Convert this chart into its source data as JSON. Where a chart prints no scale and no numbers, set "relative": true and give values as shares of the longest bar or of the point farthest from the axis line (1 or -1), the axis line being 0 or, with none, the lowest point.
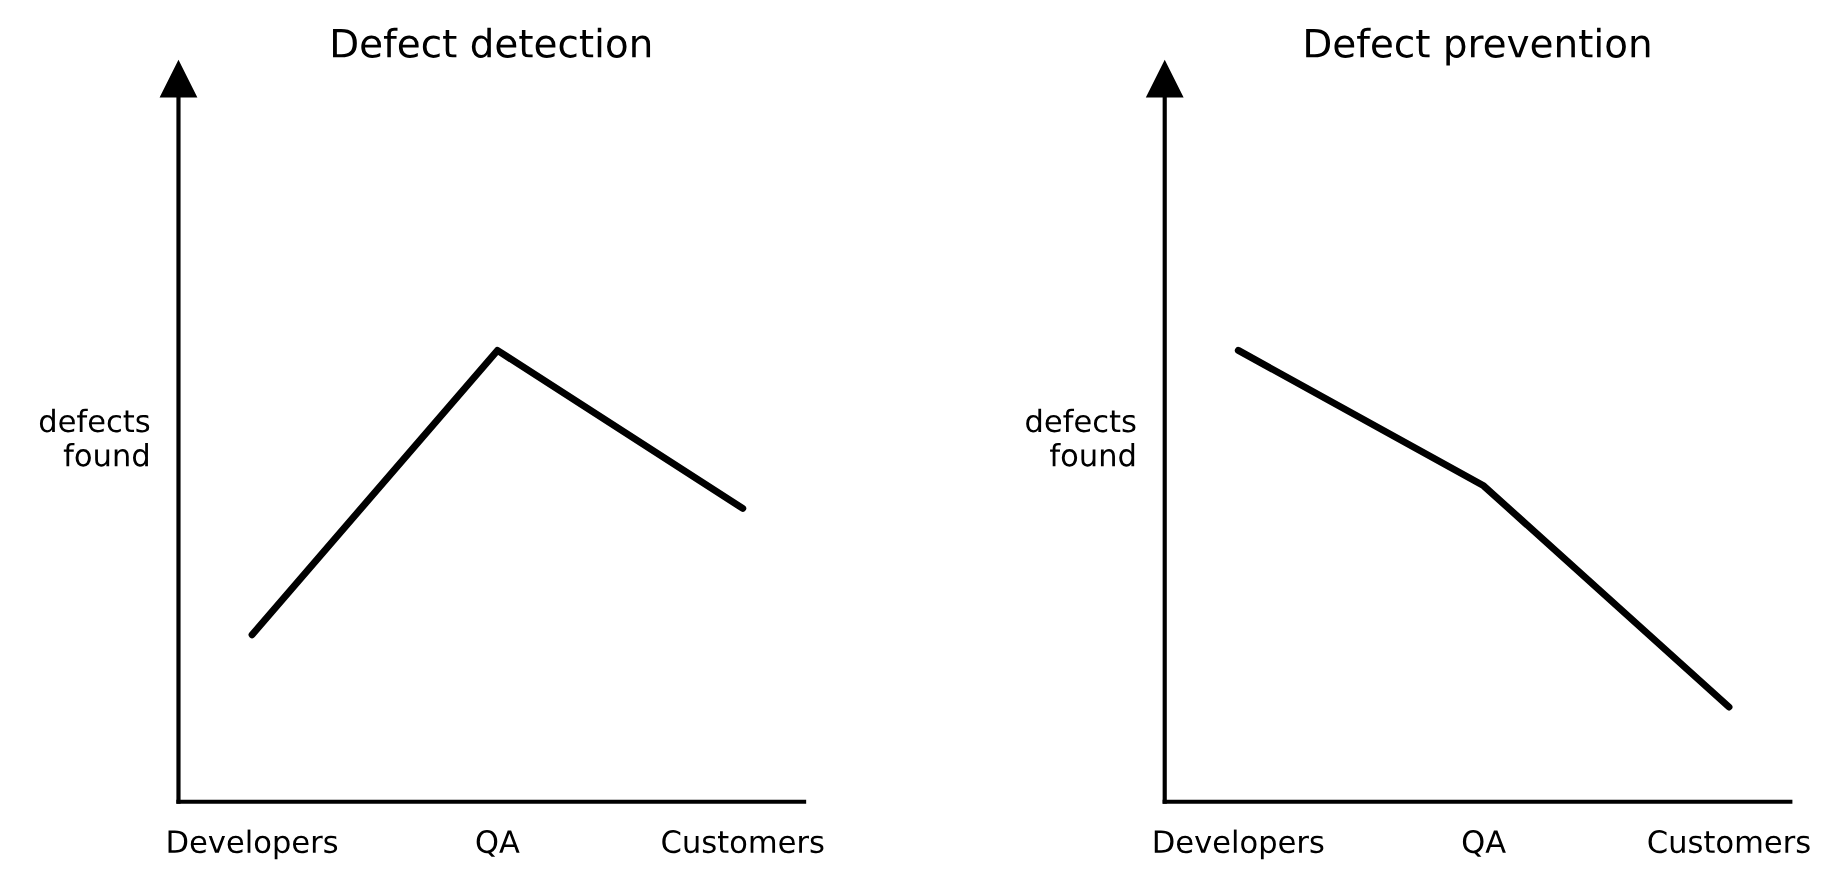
{
  "chart_data": [
    {
      "type": "line",
      "title": "Defect detection",
      "ylabel": "defects\nfound",
      "relative": true,
      "categories": [
        "Developers",
        "QA",
        "Customers"
      ],
      "series": [
        {
          "color": "#000000",
          "values": [
            0.37,
            1,
            0.65
          ]
        }
      ],
      "grid": false,
      "legend": false
    },
    {
      "type": "line",
      "title": "Defect prevention",
      "ylabel": "defects\nfound",
      "relative": true,
      "categories": [
        "Developers",
        "QA",
        "Customers"
      ],
      "series": [
        {
          "color": "#000000",
          "values": [
            1,
            0.7,
            0.21
          ]
        }
      ],
      "grid": false,
      "legend": false
    }
  ]
}
